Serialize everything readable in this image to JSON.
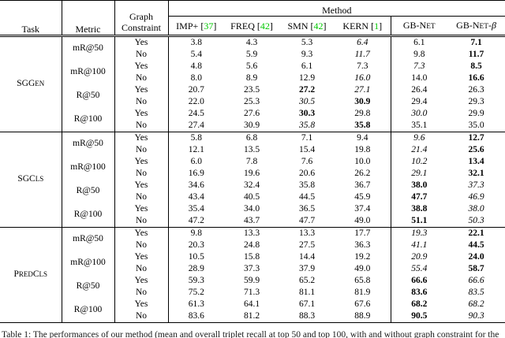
{
  "colors": {
    "citation_green": "#00c800",
    "text": "#000000",
    "rule": "#000000"
  },
  "caption": "Table 1: The performances of our method (mean and overall triplet recall at top 50 and top 100, with and without graph constraint for the",
  "header": {
    "task": "Task",
    "metric": "Metric",
    "graph_line1": "Graph",
    "graph_line2": "Constraint",
    "method_group": "Method",
    "methods": [
      {
        "label": "IMP+",
        "cite": "[37]"
      },
      {
        "label": "FREQ",
        "cite": "[42]"
      },
      {
        "label": "SMN",
        "cite": "[42]"
      },
      {
        "label": "KERN",
        "cite": "[1]"
      },
      {
        "label": "GB-Net",
        "cite": ""
      },
      {
        "label": "GB-Net-β",
        "cite": ""
      }
    ]
  },
  "groups": [
    {
      "task": "SGGen",
      "metrics": [
        {
          "name": "mR@50",
          "rows": [
            {
              "constraint": "Yes",
              "values": [
                "3.8",
                "4.3",
                "5.3",
                "6.4",
                "6.1",
                "7.1"
              ],
              "styles": [
                "",
                "",
                "",
                "i",
                "",
                "b"
              ]
            },
            {
              "constraint": "No",
              "values": [
                "5.4",
                "5.9",
                "9.3",
                "11.7",
                "9.8",
                "11.7"
              ],
              "styles": [
                "",
                "",
                "",
                "i",
                "",
                "b"
              ]
            }
          ]
        },
        {
          "name": "mR@100",
          "rows": [
            {
              "constraint": "Yes",
              "values": [
                "4.8",
                "5.6",
                "6.1",
                "7.3",
                "7.3",
                "8.5"
              ],
              "styles": [
                "",
                "",
                "",
                "",
                "i",
                "b"
              ]
            },
            {
              "constraint": "No",
              "values": [
                "8.0",
                "8.9",
                "12.9",
                "16.0",
                "14.0",
                "16.6"
              ],
              "styles": [
                "",
                "",
                "",
                "i",
                "",
                "b"
              ]
            }
          ]
        },
        {
          "name": "R@50",
          "rows": [
            {
              "constraint": "Yes",
              "values": [
                "20.7",
                "23.5",
                "27.2",
                "27.1",
                "26.4",
                "26.3"
              ],
              "styles": [
                "",
                "",
                "b",
                "i",
                "",
                ""
              ]
            },
            {
              "constraint": "No",
              "values": [
                "22.0",
                "25.3",
                "30.5",
                "30.9",
                "29.4",
                "29.3"
              ],
              "styles": [
                "",
                "",
                "i",
                "b",
                "",
                ""
              ]
            }
          ]
        },
        {
          "name": "R@100",
          "rows": [
            {
              "constraint": "Yes",
              "values": [
                "24.5",
                "27.6",
                "30.3",
                "29.8",
                "30.0",
                "29.9"
              ],
              "styles": [
                "",
                "",
                "b",
                "",
                "i",
                ""
              ]
            },
            {
              "constraint": "No",
              "values": [
                "27.4",
                "30.9",
                "35.8",
                "35.8",
                "35.1",
                "35.0"
              ],
              "styles": [
                "",
                "",
                "i",
                "b",
                "",
                ""
              ]
            }
          ]
        }
      ]
    },
    {
      "task": "SGCls",
      "metrics": [
        {
          "name": "mR@50",
          "rows": [
            {
              "constraint": "Yes",
              "values": [
                "5.8",
                "6.8",
                "7.1",
                "9.4",
                "9.6",
                "12.7"
              ],
              "styles": [
                "",
                "",
                "",
                "",
                "i",
                "b"
              ]
            },
            {
              "constraint": "No",
              "values": [
                "12.1",
                "13.5",
                "15.4",
                "19.8",
                "21.4",
                "25.6"
              ],
              "styles": [
                "",
                "",
                "",
                "",
                "i",
                "b"
              ]
            }
          ]
        },
        {
          "name": "mR@100",
          "rows": [
            {
              "constraint": "Yes",
              "values": [
                "6.0",
                "7.8",
                "7.6",
                "10.0",
                "10.2",
                "13.4"
              ],
              "styles": [
                "",
                "",
                "",
                "",
                "i",
                "b"
              ]
            },
            {
              "constraint": "No",
              "values": [
                "16.9",
                "19.6",
                "20.6",
                "26.2",
                "29.1",
                "32.1"
              ],
              "styles": [
                "",
                "",
                "",
                "",
                "i",
                "b"
              ]
            }
          ]
        },
        {
          "name": "R@50",
          "rows": [
            {
              "constraint": "Yes",
              "values": [
                "34.6",
                "32.4",
                "35.8",
                "36.7",
                "38.0",
                "37.3"
              ],
              "styles": [
                "",
                "",
                "",
                "",
                "b",
                "i"
              ]
            },
            {
              "constraint": "No",
              "values": [
                "43.4",
                "40.5",
                "44.5",
                "45.9",
                "47.7",
                "46.9"
              ],
              "styles": [
                "",
                "",
                "",
                "",
                "b",
                "i"
              ]
            }
          ]
        },
        {
          "name": "R@100",
          "rows": [
            {
              "constraint": "Yes",
              "values": [
                "35.4",
                "34.0",
                "36.5",
                "37.4",
                "38.8",
                "38.0"
              ],
              "styles": [
                "",
                "",
                "",
                "",
                "b",
                "i"
              ]
            },
            {
              "constraint": "No",
              "values": [
                "47.2",
                "43.7",
                "47.7",
                "49.0",
                "51.1",
                "50.3"
              ],
              "styles": [
                "",
                "",
                "",
                "",
                "b",
                "i"
              ]
            }
          ]
        }
      ]
    },
    {
      "task": "PredCls",
      "metrics": [
        {
          "name": "mR@50",
          "rows": [
            {
              "constraint": "Yes",
              "values": [
                "9.8",
                "13.3",
                "13.3",
                "17.7",
                "19.3",
                "22.1"
              ],
              "styles": [
                "",
                "",
                "",
                "",
                "i",
                "b"
              ]
            },
            {
              "constraint": "No",
              "values": [
                "20.3",
                "24.8",
                "27.5",
                "36.3",
                "41.1",
                "44.5"
              ],
              "styles": [
                "",
                "",
                "",
                "",
                "i",
                "b"
              ]
            }
          ]
        },
        {
          "name": "mR@100",
          "rows": [
            {
              "constraint": "Yes",
              "values": [
                "10.5",
                "15.8",
                "14.4",
                "19.2",
                "20.9",
                "24.0"
              ],
              "styles": [
                "",
                "",
                "",
                "",
                "i",
                "b"
              ]
            },
            {
              "constraint": "No",
              "values": [
                "28.9",
                "37.3",
                "37.9",
                "49.0",
                "55.4",
                "58.7"
              ],
              "styles": [
                "",
                "",
                "",
                "",
                "i",
                "b"
              ]
            }
          ]
        },
        {
          "name": "R@50",
          "rows": [
            {
              "constraint": "Yes",
              "values": [
                "59.3",
                "59.9",
                "65.2",
                "65.8",
                "66.6",
                "66.6"
              ],
              "styles": [
                "",
                "",
                "",
                "",
                "b",
                "i"
              ]
            },
            {
              "constraint": "No",
              "values": [
                "75.2",
                "71.3",
                "81.1",
                "81.9",
                "83.6",
                "83.5"
              ],
              "styles": [
                "",
                "",
                "",
                "",
                "b",
                "i"
              ]
            }
          ]
        },
        {
          "name": "R@100",
          "rows": [
            {
              "constraint": "Yes",
              "values": [
                "61.3",
                "64.1",
                "67.1",
                "67.6",
                "68.2",
                "68.2"
              ],
              "styles": [
                "",
                "",
                "",
                "",
                "b",
                "i"
              ]
            },
            {
              "constraint": "No",
              "values": [
                "83.6",
                "81.2",
                "88.3",
                "88.9",
                "90.5",
                "90.3"
              ],
              "styles": [
                "",
                "",
                "",
                "",
                "b",
                "i"
              ]
            }
          ]
        }
      ]
    }
  ]
}
